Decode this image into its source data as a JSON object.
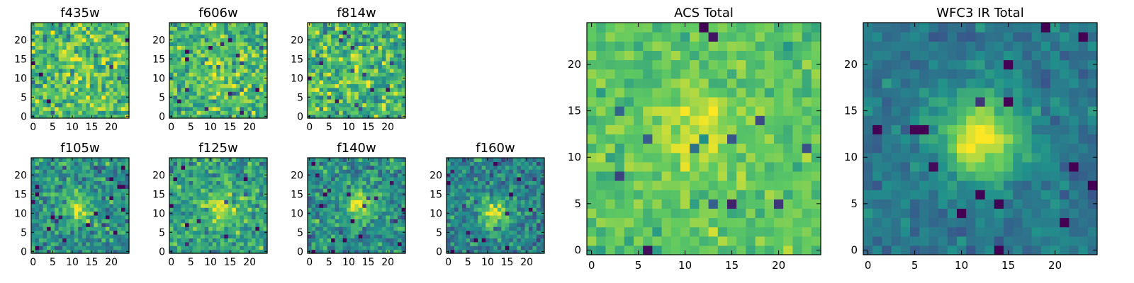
{
  "figure": {
    "description_text": "",
    "colormap": "viridis",
    "colormap_stops": [
      "#440154",
      "#3b528b",
      "#21918c",
      "#5ec962",
      "#fde725"
    ]
  },
  "chart_data": [
    {
      "type": "heatmap",
      "title": "f435w",
      "grid": [
        25,
        25
      ],
      "xticks": [
        0,
        5,
        10,
        15,
        20
      ],
      "yticks": [
        0,
        5,
        10,
        15,
        20
      ],
      "xlim": [
        -0.5,
        24.5
      ],
      "ylim": [
        -0.5,
        24.5
      ],
      "center": [
        12,
        13
      ],
      "peak": 0.12,
      "sigma": 4.0,
      "noise": 0.55,
      "base": 0.68,
      "seed": 11
    },
    {
      "type": "heatmap",
      "title": "f606w",
      "grid": [
        25,
        25
      ],
      "xticks": [
        0,
        5,
        10,
        15,
        20
      ],
      "yticks": [
        0,
        5,
        10,
        15,
        20
      ],
      "xlim": [
        -0.5,
        24.5
      ],
      "ylim": [
        -0.5,
        24.5
      ],
      "center": [
        13,
        11
      ],
      "peak": 0.18,
      "sigma": 3.5,
      "noise": 0.5,
      "base": 0.66,
      "seed": 23
    },
    {
      "type": "heatmap",
      "title": "f814w",
      "grid": [
        25,
        25
      ],
      "xticks": [
        0,
        5,
        10,
        15,
        20
      ],
      "yticks": [
        0,
        5,
        10,
        15,
        20
      ],
      "xlim": [
        -0.5,
        24.5
      ],
      "ylim": [
        -0.5,
        24.5
      ],
      "center": [
        12,
        12
      ],
      "peak": 0.1,
      "sigma": 3.5,
      "noise": 0.55,
      "base": 0.66,
      "seed": 37
    },
    {
      "type": "heatmap",
      "title": "f105w",
      "grid": [
        25,
        25
      ],
      "xticks": [
        0,
        5,
        10,
        15,
        20
      ],
      "yticks": [
        0,
        5,
        10,
        15,
        20
      ],
      "xlim": [
        -0.5,
        24.5
      ],
      "ylim": [
        -0.5,
        24.5
      ],
      "center": [
        11,
        11
      ],
      "peak": 0.4,
      "sigma": 2.6,
      "noise": 0.45,
      "base": 0.5,
      "seed": 41
    },
    {
      "type": "heatmap",
      "title": "f125w",
      "grid": [
        25,
        25
      ],
      "xticks": [
        0,
        5,
        10,
        15,
        20
      ],
      "yticks": [
        0,
        5,
        10,
        15,
        20
      ],
      "xlim": [
        -0.5,
        24.5
      ],
      "ylim": [
        -0.5,
        24.5
      ],
      "center": [
        12,
        11
      ],
      "peak": 0.3,
      "sigma": 3.0,
      "noise": 0.45,
      "base": 0.58,
      "seed": 53
    },
    {
      "type": "heatmap",
      "title": "f140w",
      "grid": [
        25,
        25
      ],
      "xticks": [
        0,
        5,
        10,
        15,
        20
      ],
      "yticks": [
        0,
        5,
        10,
        15,
        20
      ],
      "xlim": [
        -0.5,
        24.5
      ],
      "ylim": [
        -0.5,
        24.5
      ],
      "center": [
        13,
        12
      ],
      "peak": 0.4,
      "sigma": 3.0,
      "noise": 0.45,
      "base": 0.5,
      "seed": 67
    },
    {
      "type": "heatmap",
      "title": "f160w",
      "grid": [
        25,
        25
      ],
      "xticks": [
        0,
        5,
        10,
        15,
        20
      ],
      "yticks": [
        0,
        5,
        10,
        15,
        20
      ],
      "xlim": [
        -0.5,
        24.5
      ],
      "ylim": [
        -0.5,
        24.5
      ],
      "center": [
        12,
        10
      ],
      "peak": 0.45,
      "sigma": 2.6,
      "noise": 0.42,
      "base": 0.45,
      "seed": 79
    },
    {
      "type": "heatmap",
      "title": "ACS Total",
      "grid": [
        25,
        25
      ],
      "xticks": [
        0,
        5,
        10,
        15,
        20
      ],
      "yticks": [
        0,
        5,
        10,
        15,
        20
      ],
      "xlim": [
        -0.5,
        24.5
      ],
      "ylim": [
        -0.5,
        24.5
      ],
      "center": [
        11,
        13
      ],
      "peak": 0.18,
      "sigma": 3.5,
      "noise": 0.28,
      "base": 0.72,
      "seed": 97
    },
    {
      "type": "heatmap",
      "title": "WFC3 IR Total",
      "grid": [
        25,
        25
      ],
      "xticks": [
        0,
        5,
        10,
        15,
        20
      ],
      "yticks": [
        0,
        5,
        10,
        15,
        20
      ],
      "xlim": [
        -0.5,
        24.5
      ],
      "ylim": [
        -0.5,
        24.5
      ],
      "center": [
        12,
        12
      ],
      "peak": 0.55,
      "sigma": 3.2,
      "noise": 0.22,
      "base": 0.4,
      "seed": 131
    }
  ]
}
